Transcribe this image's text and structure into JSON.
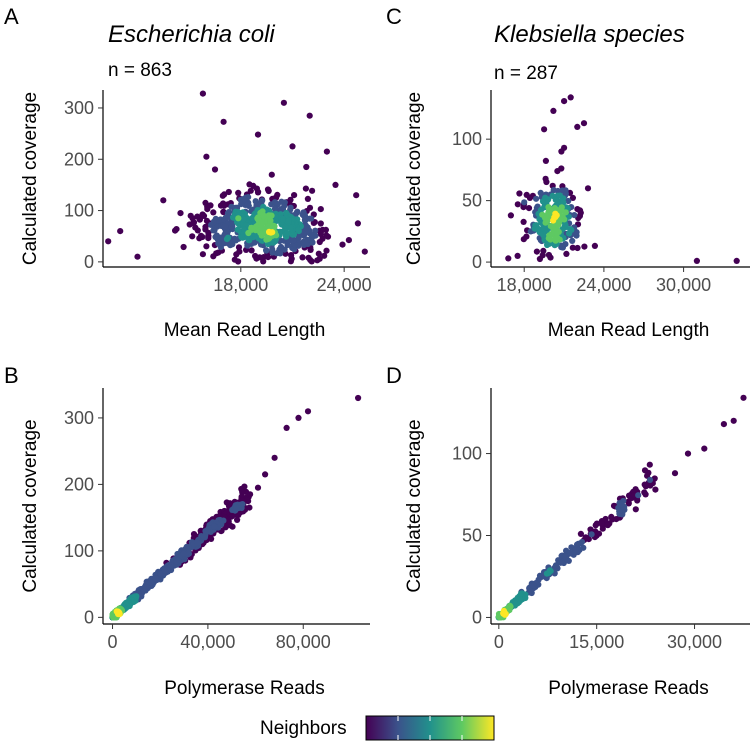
{
  "figure": {
    "legend": {
      "title": "Neighbors",
      "colors": [
        "#440154",
        "#3b528b",
        "#21918c",
        "#5ec962",
        "#fde725"
      ]
    }
  },
  "chart_data": [
    {
      "panel": "A",
      "type": "scatter",
      "title": "Escherichia coli",
      "subtitle": "n = 863",
      "xlabel": "Mean Read Length",
      "ylabel": "Calculated coverage",
      "xlim": [
        10000,
        25500
      ],
      "ylim": [
        -10,
        335
      ],
      "xticks": [
        18000,
        24000
      ],
      "xtick_labels": [
        "18,000",
        "24,000"
      ],
      "yticks": [
        0,
        100,
        200,
        300
      ],
      "ytick_labels": [
        "0",
        "100",
        "200",
        "300"
      ],
      "grid": false,
      "color_by": "Neighbors",
      "n_points": 863,
      "points": [
        [
          15800,
          328
        ],
        [
          20500,
          310
        ],
        [
          22000,
          285
        ],
        [
          17000,
          273
        ],
        [
          19000,
          248
        ],
        [
          16000,
          205
        ],
        [
          21000,
          225
        ],
        [
          23000,
          215
        ],
        [
          24700,
          130
        ],
        [
          10300,
          40
        ],
        [
          25200,
          20
        ],
        [
          24800,
          75
        ],
        [
          12000,
          10
        ],
        [
          11000,
          60
        ],
        [
          13500,
          120
        ],
        [
          23500,
          150
        ],
        [
          16500,
          180
        ],
        [
          19800,
          170
        ],
        [
          21800,
          185
        ],
        [
          14500,
          95
        ]
      ],
      "dense_center": [
        19000,
        70
      ]
    },
    {
      "panel": "C",
      "type": "scatter",
      "title": "Klebsiella species",
      "subtitle": "n = 287",
      "xlabel": "Mean Read Length",
      "ylabel": "Calculated coverage",
      "xlim": [
        15500,
        35000
      ],
      "ylim": [
        -4,
        140
      ],
      "xticks": [
        18000,
        24000,
        30000
      ],
      "xtick_labels": [
        "18,000",
        "24,000",
        "30,000"
      ],
      "yticks": [
        0,
        50,
        100
      ],
      "ytick_labels": [
        "0",
        "50",
        "100"
      ],
      "grid": false,
      "color_by": "Neighbors",
      "n_points": 287,
      "points": [
        [
          21500,
          134
        ],
        [
          21000,
          131
        ],
        [
          20200,
          123
        ],
        [
          22500,
          113
        ],
        [
          22000,
          110
        ],
        [
          19500,
          108
        ],
        [
          21000,
          93
        ],
        [
          20800,
          90
        ],
        [
          31000,
          1
        ],
        [
          34000,
          1
        ],
        [
          17000,
          38
        ],
        [
          17500,
          5
        ],
        [
          16800,
          3
        ],
        [
          22800,
          60
        ],
        [
          18500,
          25
        ],
        [
          20000,
          55
        ]
      ],
      "dense_center": [
        20000,
        35
      ]
    },
    {
      "panel": "B",
      "type": "scatter",
      "title": "",
      "subtitle": "",
      "xlabel": "Polymerase Reads",
      "ylabel": "Calculated coverage",
      "xlim": [
        -4000,
        108000
      ],
      "ylim": [
        -10,
        345
      ],
      "xticks": [
        0,
        40000,
        80000
      ],
      "xtick_labels": [
        "0",
        "40,000",
        "80,000"
      ],
      "yticks": [
        0,
        100,
        200,
        300
      ],
      "ytick_labels": [
        "0",
        "100",
        "200",
        "300"
      ],
      "grid": false,
      "color_by": "Neighbors",
      "relationship": "approximately linear, coverage ≈ 0.0032 × reads",
      "points": [
        [
          103000,
          330
        ],
        [
          82000,
          310
        ],
        [
          78000,
          300
        ],
        [
          73000,
          285
        ],
        [
          68000,
          240
        ],
        [
          64000,
          215
        ],
        [
          61000,
          195
        ],
        [
          56000,
          180
        ],
        [
          52000,
          165
        ],
        [
          47000,
          150
        ],
        [
          43000,
          135
        ],
        [
          38000,
          120
        ],
        [
          33000,
          105
        ],
        [
          28000,
          90
        ],
        [
          22000,
          70
        ],
        [
          15000,
          48
        ],
        [
          8000,
          26
        ],
        [
          3000,
          10
        ],
        [
          0,
          0
        ]
      ]
    },
    {
      "panel": "D",
      "type": "scatter",
      "title": "",
      "subtitle": "",
      "xlabel": "Polymerase Reads",
      "ylabel": "Calculated coverage",
      "xlim": [
        -1200,
        38500
      ],
      "ylim": [
        -4,
        140
      ],
      "xticks": [
        0,
        15000,
        30000
      ],
      "xtick_labels": [
        "0",
        "15,000",
        "30,000"
      ],
      "yticks": [
        0,
        50,
        100
      ],
      "ytick_labels": [
        "0",
        "50",
        "100"
      ],
      "grid": false,
      "color_by": "Neighbors",
      "relationship": "approximately linear, coverage ≈ 0.0036 × reads",
      "points": [
        [
          37500,
          134
        ],
        [
          36000,
          120
        ],
        [
          34500,
          118
        ],
        [
          31500,
          103
        ],
        [
          29000,
          100
        ],
        [
          27000,
          88
        ],
        [
          24000,
          78
        ],
        [
          21000,
          66
        ],
        [
          18000,
          60
        ],
        [
          15000,
          50
        ],
        [
          12000,
          40
        ],
        [
          9000,
          30
        ],
        [
          6000,
          20
        ],
        [
          3000,
          10
        ],
        [
          0,
          0
        ]
      ]
    }
  ]
}
